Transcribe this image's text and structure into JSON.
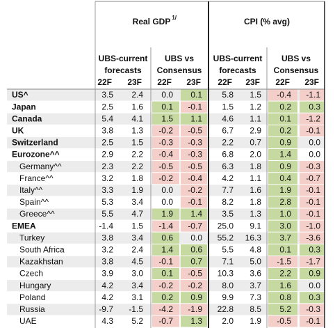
{
  "table": {
    "groups": [
      {
        "title": "Real GDP",
        "note": "1/",
        "subgroups": [
          {
            "lines": [
              "UBS-current",
              "forecasts"
            ],
            "years": [
              "22F",
              "23F"
            ]
          },
          {
            "lines": [
              "UBS vs",
              "Consensus"
            ],
            "years": [
              "22F",
              "23F"
            ]
          }
        ]
      },
      {
        "title": "CPI (% avg)",
        "subgroups": [
          {
            "lines": [
              "UBS-current",
              "forecasts"
            ],
            "years": [
              "22F",
              "23F"
            ]
          },
          {
            "lines": [
              "UBS vs",
              "Consensus"
            ],
            "years": [
              "22F",
              "23F"
            ]
          }
        ]
      }
    ],
    "rows": [
      {
        "label": "US^",
        "values": [
          "3.5",
          "2.4",
          "0.0",
          "0.1",
          "5.8",
          "1.5",
          "-0.4",
          "-1.1"
        ]
      },
      {
        "label": "Japan",
        "values": [
          "2.5",
          "1.6",
          "0.1",
          "-0.1",
          "1.5",
          "1.2",
          "0.2",
          "0.3"
        ]
      },
      {
        "label": "Canada",
        "values": [
          "5.4",
          "4.1",
          "1.5",
          "1.1",
          "4.6",
          "1.1",
          "0.1",
          "-1.2"
        ]
      },
      {
        "label": "UK",
        "values": [
          "3.8",
          "1.3",
          "-0.2",
          "-0.5",
          "6.7",
          "2.9",
          "0.2",
          "-0.1"
        ]
      },
      {
        "label": "Switzerland",
        "values": [
          "2.5",
          "1.5",
          "-0.3",
          "-0.3",
          "2.2",
          "0.7",
          "0.9",
          "0.0"
        ]
      },
      {
        "label": "Eurozone^^",
        "values": [
          "2.9",
          "2.2",
          "-0.4",
          "-0.3",
          "6.8",
          "2.0",
          "1.4",
          "0.0"
        ],
        "members": [
          {
            "label": "Germany^^",
            "values": [
              "2.3",
              "2.2",
              "-0.5",
              "-0.5",
              "6.3",
              "1.8",
              "0.9",
              "-0.3"
            ]
          },
          {
            "label": "France^^",
            "values": [
              "3.2",
              "1.8",
              "-0.2",
              "-0.4",
              "4.2",
              "1.1",
              "0.4",
              "-0.7"
            ]
          },
          {
            "label": "Italy^^",
            "values": [
              "3.3",
              "1.9",
              "0.0",
              "-0.2",
              "7.7",
              "1.6",
              "1.9",
              "-0.1"
            ]
          },
          {
            "label": "Spain^^",
            "values": [
              "5.3",
              "3.4",
              "0.0",
              "-0.1",
              "8.2",
              "1.8",
              "2.8",
              "-0.1"
            ]
          },
          {
            "label": "Greece^^",
            "values": [
              "5.5",
              "4.7",
              "1.9",
              "1.4",
              "3.5",
              "1.3",
              "1.0",
              "-0.1"
            ]
          }
        ]
      },
      {
        "label": "EMEA",
        "values": [
          "-1.4",
          "1.5",
          "-1.4",
          "-0.7",
          "25.0",
          "9.1",
          "3.0",
          "-1.0"
        ],
        "members": [
          {
            "label": "Turkey",
            "values": [
              "3.8",
              "3.4",
              "0.6",
              "0.0",
              "55.2",
              "16.3",
              "3.7",
              "-3.6"
            ]
          },
          {
            "label": "South Africa",
            "values": [
              "3.2",
              "2.4",
              "1.4",
              "0.6",
              "5.5",
              "4.8",
              "0.1",
              "0.3"
            ]
          },
          {
            "label": "Kazakhstan",
            "values": [
              "3.8",
              "4.5",
              "-0.1",
              "0.7",
              "7.1",
              "5.0",
              "-1.5",
              "-1.7"
            ]
          },
          {
            "label": "Czech",
            "values": [
              "3.9",
              "3.0",
              "0.1",
              "-0.5",
              "10.3",
              "3.6",
              "2.2",
              "0.9"
            ]
          },
          {
            "label": "Hungary",
            "values": [
              "4.2",
              "3.4",
              "-0.2",
              "-0.2",
              "8.0",
              "3.7",
              "1.6",
              "0.0"
            ]
          },
          {
            "label": "Poland",
            "values": [
              "4.2",
              "3.1",
              "0.2",
              "0.9",
              "9.9",
              "7.3",
              "0.8",
              "0.3"
            ]
          },
          {
            "label": "Russia",
            "values": [
              "-9.7",
              "-1.5",
              "-4.2",
              "-1.9",
              "22.8",
              "8.5",
              "5.2",
              "-0.3"
            ]
          },
          {
            "label": "UAE",
            "values": [
              "4.3",
              "5.2",
              "-0.7",
              "1.3",
              "2.0",
              "1.9",
              "-0.5",
              "-0.1"
            ]
          }
        ]
      }
    ]
  }
}
